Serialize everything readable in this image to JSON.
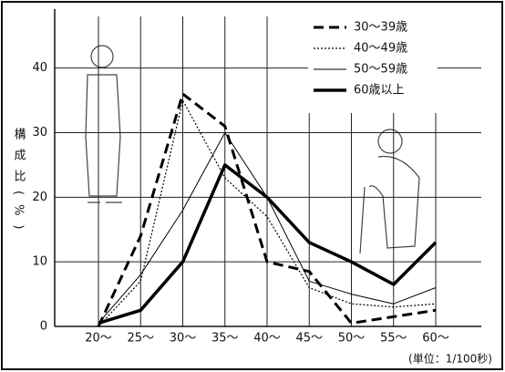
{
  "chart_data": {
    "type": "line",
    "y_label": "構成比(%)",
    "unit_note": "(単位：1/100秒)",
    "categories": [
      "20～",
      "25～",
      "30～",
      "35～",
      "40～",
      "45～",
      "50～",
      "55～",
      "60～"
    ],
    "series": [
      {
        "name": "30～39歳",
        "color": "#000",
        "style": "dashed",
        "values": [
          0,
          14,
          36,
          31,
          10,
          8.5,
          0.5,
          1.5,
          2.5
        ]
      },
      {
        "name": "40～49歳",
        "color": "#000",
        "style": "dotted",
        "values": [
          0,
          7,
          35,
          23,
          17,
          6,
          3.5,
          3,
          3.5
        ]
      },
      {
        "name": "50～59歳",
        "color": "#000",
        "style": "thin",
        "values": [
          0.5,
          8,
          18,
          30,
          20,
          7,
          5,
          3.5,
          6
        ]
      },
      {
        "name": "60歳以上",
        "color": "#000",
        "style": "thick",
        "values": [
          0.5,
          2.5,
          10,
          25,
          20,
          13,
          10,
          6.5,
          13
        ]
      }
    ],
    "ylim": [
      0,
      48
    ],
    "yticks": [
      0,
      10,
      20,
      30,
      40
    ],
    "grid": true
  }
}
